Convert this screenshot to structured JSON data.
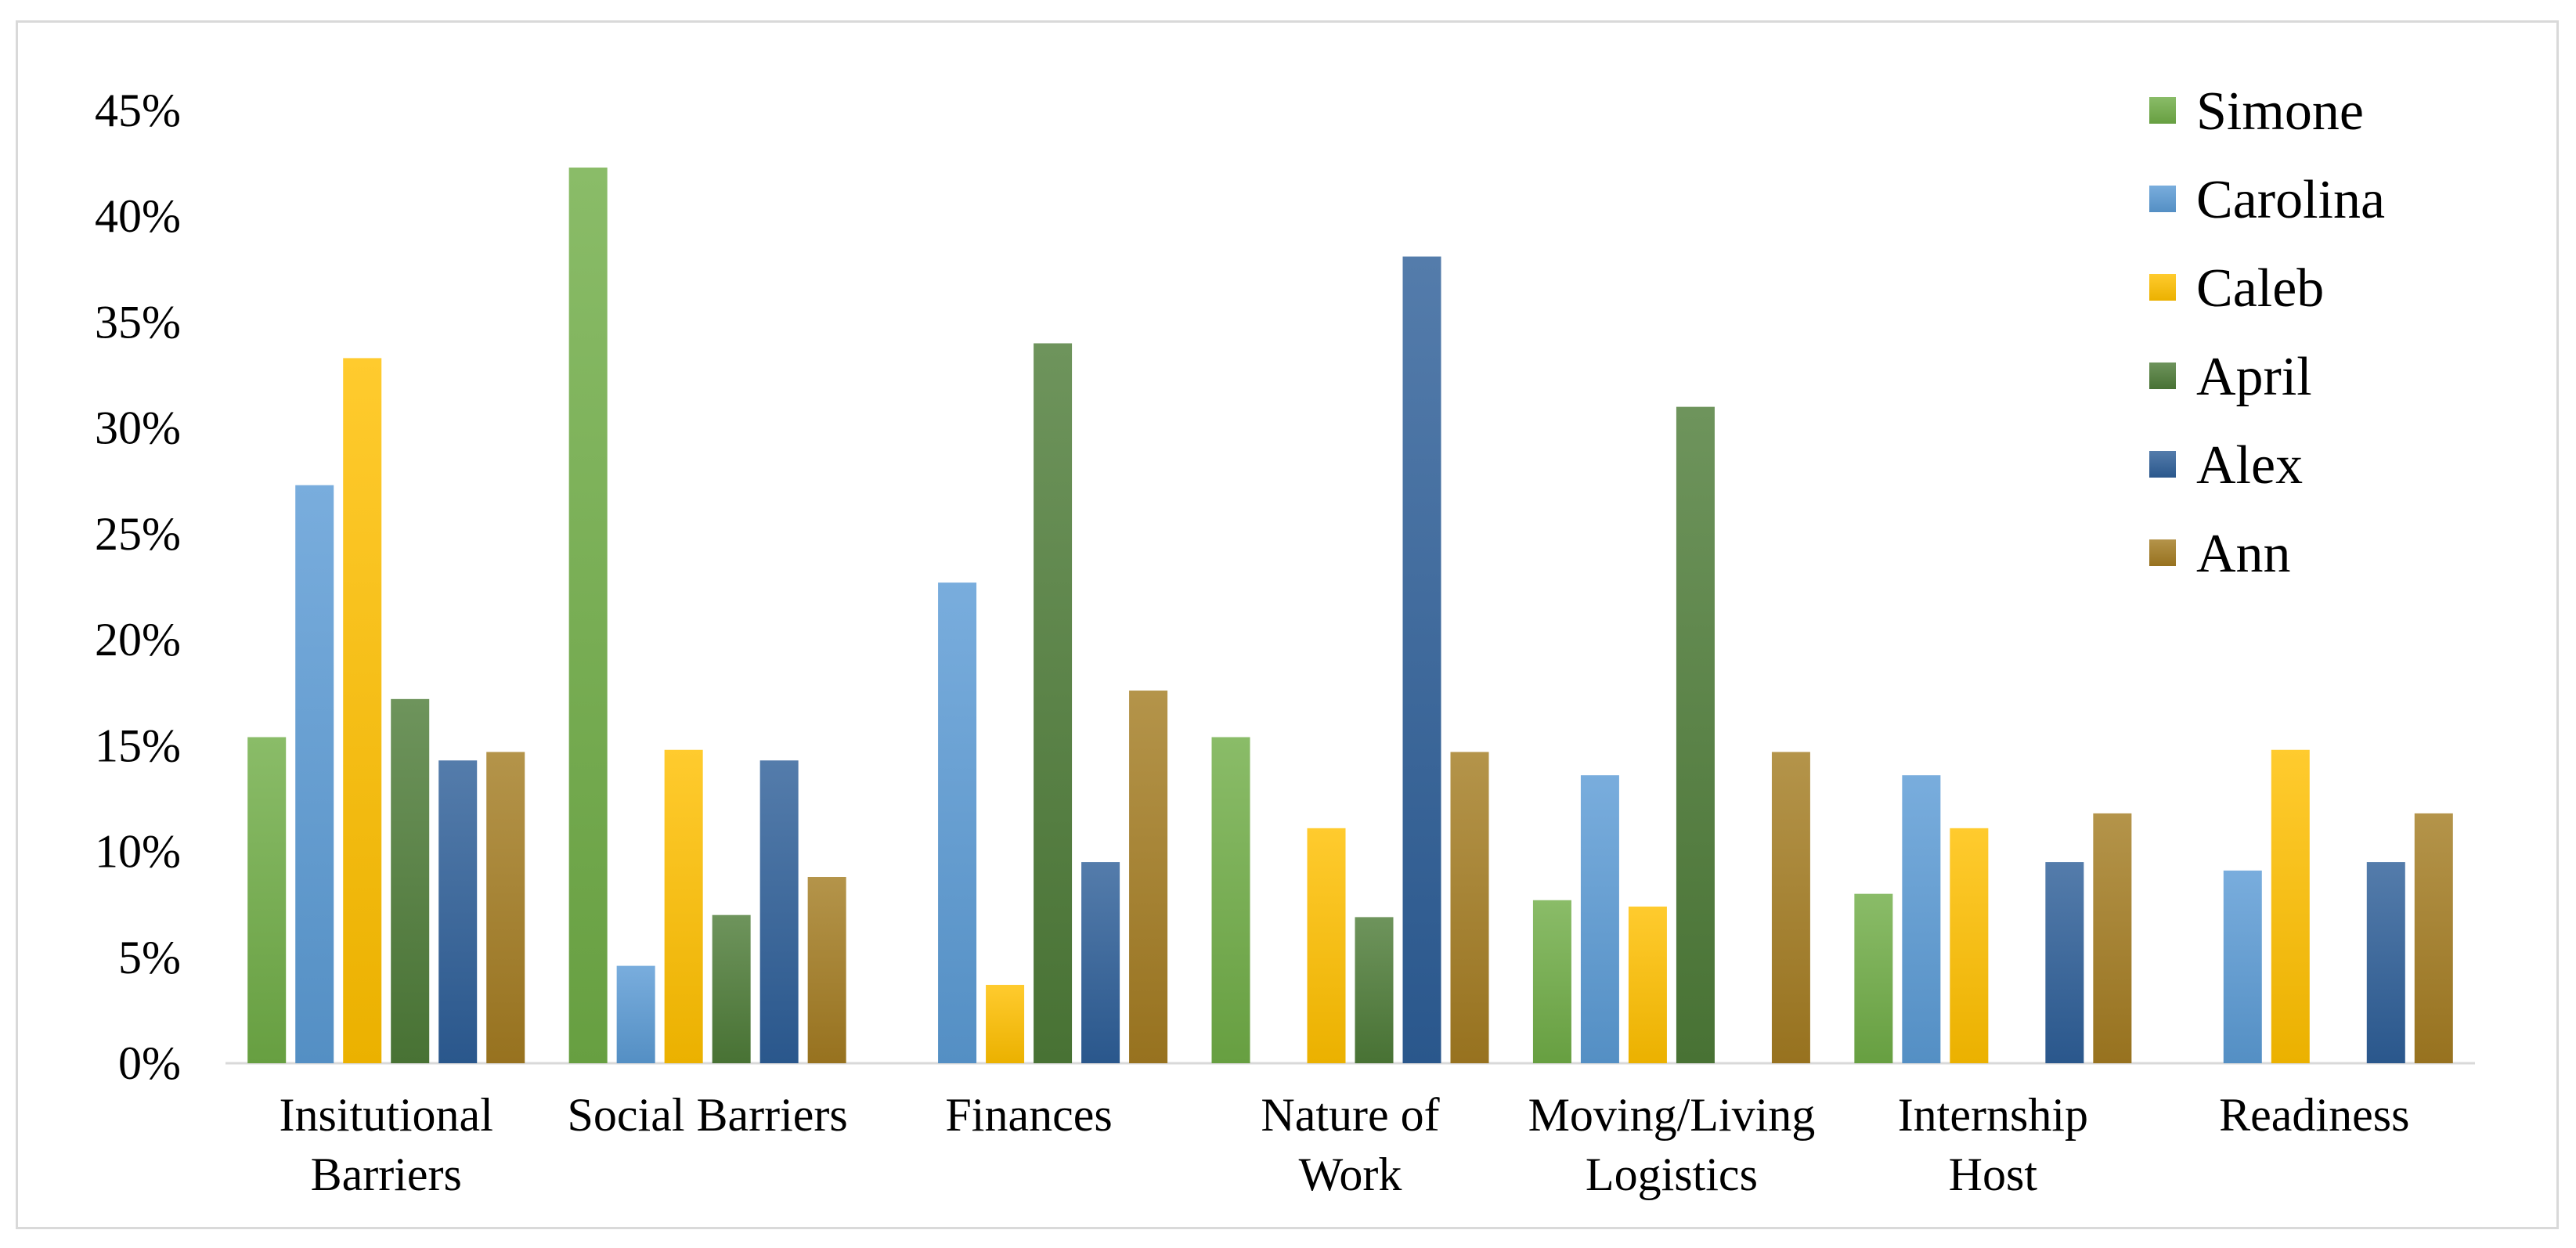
{
  "chart_data": {
    "type": "bar",
    "title": "",
    "xlabel": "",
    "ylabel": "",
    "ylim": [
      0,
      45
    ],
    "y_ticks": [
      "0%",
      "5%",
      "10%",
      "15%",
      "20%",
      "25%",
      "30%",
      "35%",
      "40%",
      "45%"
    ],
    "y_tick_values": [
      0,
      5,
      10,
      15,
      20,
      25,
      30,
      35,
      40,
      45
    ],
    "grid": false,
    "legend_position": "top-right",
    "categories": [
      [
        "Insitutional",
        "Barriers"
      ],
      [
        "Social Barriers"
      ],
      [
        "Finances"
      ],
      [
        "Nature of",
        "Work"
      ],
      [
        "Moving/Living",
        "Logistics"
      ],
      [
        "Internship",
        "Host"
      ],
      [
        "Readiness"
      ]
    ],
    "series": [
      {
        "name": "Simone",
        "color": "#70ad47",
        "values": [
          15.4,
          42.3,
          0,
          15.4,
          7.7,
          8.0,
          0
        ]
      },
      {
        "name": "Carolina",
        "color": "#5b9bd5",
        "values": [
          27.3,
          4.6,
          22.7,
          0,
          13.6,
          13.6,
          9.1
        ]
      },
      {
        "name": "Caleb",
        "color": "#ffc000",
        "values": [
          33.3,
          14.8,
          3.7,
          11.1,
          7.4,
          11.1,
          14.8
        ]
      },
      {
        "name": "April",
        "color": "#4e7c38",
        "values": [
          17.2,
          7.0,
          34.0,
          6.9,
          31.0,
          0,
          0
        ]
      },
      {
        "name": "Alex",
        "color": "#2e5f98",
        "values": [
          14.3,
          14.3,
          9.5,
          38.1,
          0,
          9.5,
          9.5
        ]
      },
      {
        "name": "Ann",
        "color": "#a47c22",
        "values": [
          14.7,
          8.8,
          17.6,
          14.7,
          14.7,
          11.8,
          11.8
        ]
      }
    ]
  }
}
